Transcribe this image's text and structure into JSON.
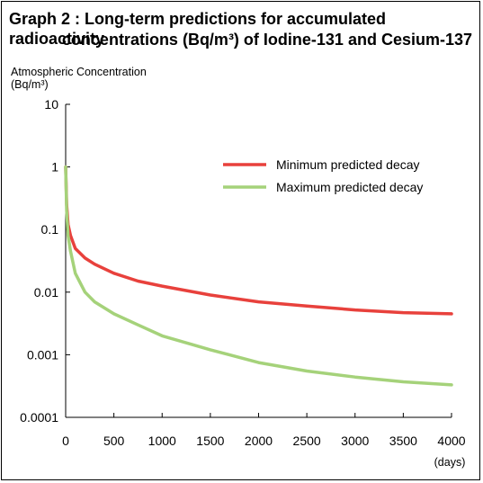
{
  "title_line1": "Graph 2 : Long-term predictions for accumulated radioactivity",
  "title_line2": "concentrations (Bq/m³) of Iodine-131 and Cesium-137",
  "chart_data": {
    "type": "line",
    "ylabel_line1": "Atmospheric Concentration",
    "ylabel_line2": "(Bq/m³)",
    "xlabel": "(days)",
    "x_scale": "linear",
    "y_scale": "log",
    "xlim": [
      0,
      4000
    ],
    "ylim": [
      0.0001,
      10
    ],
    "x_ticks": [
      "0",
      "500",
      "1000",
      "1500",
      "2000",
      "2500",
      "3000",
      "3500",
      "4000"
    ],
    "y_ticks": [
      "10",
      "1",
      "0.1",
      "0.01",
      "0.001",
      "0.0001"
    ],
    "grid": false,
    "legend_position": "top-right",
    "series": [
      {
        "name": "Minimum predicted decay",
        "color": "#e8413c",
        "x": [
          0,
          10,
          25,
          50,
          100,
          200,
          300,
          500,
          750,
          1000,
          1500,
          2000,
          2500,
          3000,
          3500,
          4000
        ],
        "y": [
          1.0,
          0.25,
          0.12,
          0.08,
          0.05,
          0.035,
          0.028,
          0.02,
          0.015,
          0.0125,
          0.009,
          0.007,
          0.006,
          0.0052,
          0.0047,
          0.0045
        ]
      },
      {
        "name": "Maximum predicted decay",
        "color": "#a5d27a",
        "x": [
          0,
          10,
          25,
          50,
          100,
          200,
          300,
          500,
          750,
          1000,
          1500,
          2000,
          2500,
          3000,
          3500,
          4000
        ],
        "y": [
          1.0,
          0.2,
          0.08,
          0.045,
          0.02,
          0.01,
          0.007,
          0.0045,
          0.003,
          0.002,
          0.0012,
          0.00075,
          0.00055,
          0.00044,
          0.00037,
          0.00033
        ]
      }
    ]
  }
}
